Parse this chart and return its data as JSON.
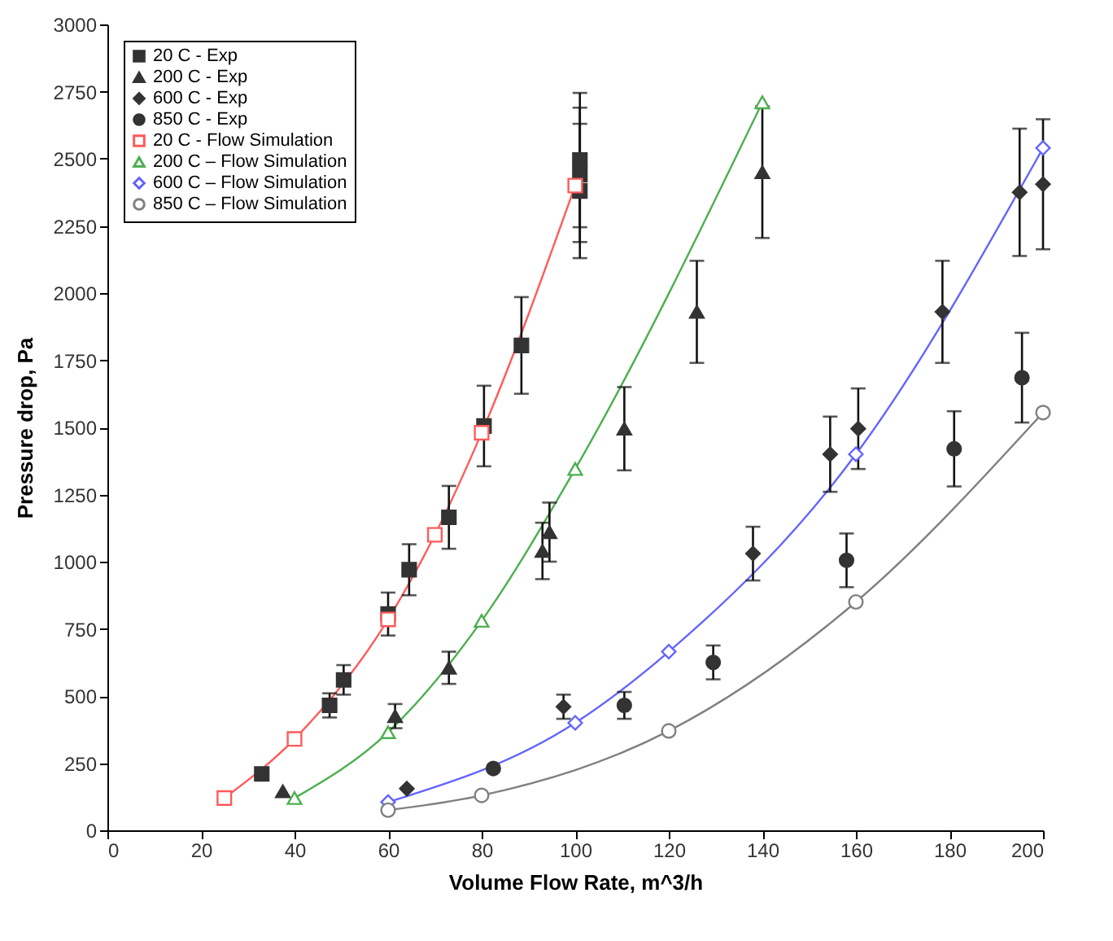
{
  "chart_data": {
    "type": "scatter",
    "xlabel": "Volume Flow Rate, m^3/h",
    "ylabel": "Pressure drop, Pa",
    "xlim": [
      0,
      200
    ],
    "xticks": [
      0,
      20,
      40,
      60,
      80,
      100,
      120,
      140,
      160,
      180,
      200
    ],
    "ylim": [
      0,
      3000
    ],
    "yticks": [
      0,
      250,
      500,
      750,
      1000,
      1250,
      1500,
      1750,
      2000,
      2250,
      2500,
      2750,
      3000
    ],
    "grid": false,
    "legend": "top left",
    "series": [
      {
        "name": "20 C   - Exp",
        "type": "scatter",
        "marker": "square",
        "color": "#333333",
        "x": [
          33,
          47.5,
          50.5,
          60,
          64.5,
          73,
          80.5,
          88.5,
          101,
          101,
          101
        ],
        "values": [
          210,
          465,
          560,
          805,
          970,
          1165,
          1505,
          1805,
          2380,
          2440,
          2495
        ],
        "errors": [
          null,
          45,
          55,
          80,
          95,
          117,
          150,
          180,
          250,
          250,
          250
        ]
      },
      {
        "name": "200 C - Exp",
        "type": "scatter",
        "marker": "triangle",
        "color": "#333333",
        "x": [
          37.5,
          61.5,
          73,
          93,
          94.5,
          110.5,
          126,
          140
        ],
        "values": [
          145,
          425,
          605,
          1040,
          1110,
          1495,
          1930,
          2450
        ],
        "errors": [
          null,
          45,
          60,
          105,
          110,
          155,
          190,
          245
        ]
      },
      {
        "name": "600 C - Exp",
        "type": "scatter",
        "marker": "diamond",
        "color": "#333333",
        "x": [
          64,
          97.5,
          138,
          154.5,
          160.5,
          178.5,
          195,
          200
        ],
        "values": [
          155,
          460,
          1030,
          1400,
          1495,
          1930,
          2375,
          2405
        ],
        "errors": [
          null,
          45,
          100,
          140,
          150,
          190,
          237,
          242
        ]
      },
      {
        "name": "850 C - Exp",
        "type": "scatter",
        "marker": "circle",
        "color": "#333333",
        "x": [
          82.5,
          110.5,
          129.5,
          158,
          181,
          195.5
        ],
        "values": [
          230,
          465,
          625,
          1005,
          1420,
          1685
        ],
        "errors": [
          null,
          50,
          63,
          100,
          140,
          167
        ]
      },
      {
        "name": "20 C   - Flow Simulation",
        "type": "line",
        "marker": "square",
        "color": "#ff5a5a",
        "x": [
          25,
          40,
          60,
          70,
          80,
          100
        ],
        "values": [
          120,
          340,
          785,
          1100,
          1480,
          2400
        ]
      },
      {
        "name": "200 C – Flow Simulation",
        "type": "line",
        "marker": "triangle",
        "color": "#4caf50",
        "x": [
          40,
          60,
          80,
          100,
          140
        ],
        "values": [
          120,
          365,
          780,
          1345,
          2710
        ]
      },
      {
        "name": "600 C – Flow Simulation",
        "type": "line",
        "marker": "diamond",
        "color": "#6464ff",
        "x": [
          60,
          100,
          120,
          160,
          200
        ],
        "values": [
          105,
          400,
          665,
          1400,
          2540
        ]
      },
      {
        "name": "850 C – Flow Simulation",
        "type": "line",
        "marker": "circle",
        "color": "#808080",
        "x": [
          60,
          80,
          120,
          160,
          200
        ],
        "values": [
          75,
          130,
          370,
          850,
          1555
        ]
      }
    ]
  }
}
